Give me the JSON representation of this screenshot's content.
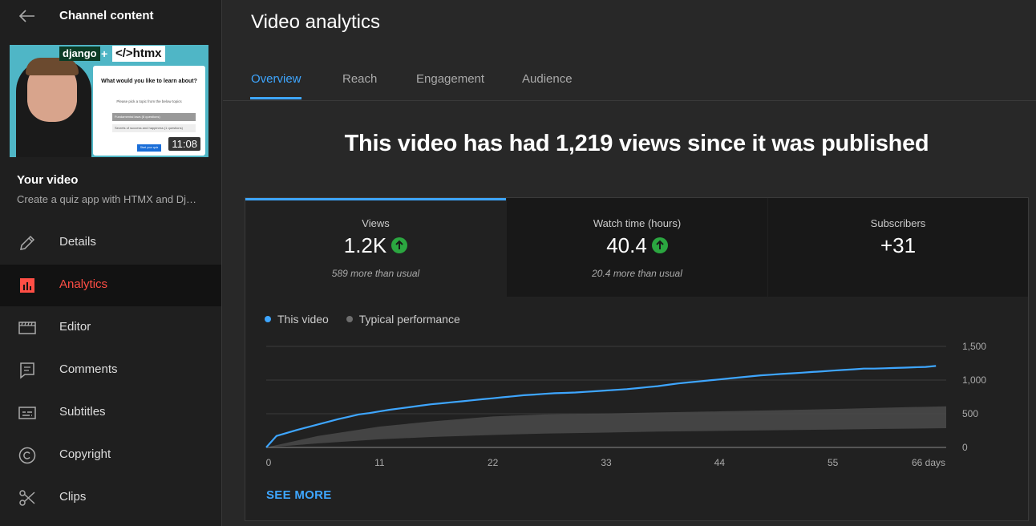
{
  "sidebar": {
    "title": "Channel content",
    "thumbnail": {
      "logo_left": "django",
      "logo_plus": "+",
      "logo_right": "</>htmx",
      "quiz_question": "What would you like to learn about?",
      "quiz_subtitle": "Please pick a topic from the below topics",
      "quiz_option_1": "Fundamental laws (8 questions)",
      "quiz_option_2": "Secrets of success and happiness (1 questions)",
      "quiz_button": "Start your quiz",
      "duration": "11:08"
    },
    "your_video_label": "Your video",
    "video_title": "Create a quiz app with HTMX and Dj…",
    "items": [
      {
        "label": "Details",
        "icon": "pencil-icon",
        "active": false
      },
      {
        "label": "Analytics",
        "icon": "analytics-icon",
        "active": true
      },
      {
        "label": "Editor",
        "icon": "editor-icon",
        "active": false
      },
      {
        "label": "Comments",
        "icon": "comments-icon",
        "active": false
      },
      {
        "label": "Subtitles",
        "icon": "subtitles-icon",
        "active": false
      },
      {
        "label": "Copyright",
        "icon": "copyright-icon",
        "active": false
      },
      {
        "label": "Clips",
        "icon": "scissors-icon",
        "active": false
      }
    ]
  },
  "header": {
    "title": "Video analytics"
  },
  "tabs": [
    {
      "label": "Overview",
      "active": true
    },
    {
      "label": "Reach",
      "active": false
    },
    {
      "label": "Engagement",
      "active": false
    },
    {
      "label": "Audience",
      "active": false
    }
  ],
  "headline": "This video has had 1,219 views since it was published",
  "metrics": [
    {
      "label": "Views",
      "value": "1.2K",
      "trend": "up",
      "sub": "589 more than usual",
      "active": true
    },
    {
      "label": "Watch time (hours)",
      "value": "40.4",
      "trend": "up",
      "sub": "20.4 more than usual",
      "active": false
    },
    {
      "label": "Subscribers",
      "value": "+31",
      "trend": "",
      "sub": "",
      "active": false
    }
  ],
  "legend": {
    "this_video": "This video",
    "typical": "Typical performance"
  },
  "colors": {
    "accent": "#3ea6ff",
    "active_nav": "#ff4e45",
    "line": "#3ea6ff",
    "trend_up": "#2ba640"
  },
  "see_more": "SEE MORE",
  "chart_data": {
    "type": "line",
    "x": [
      0,
      1,
      2,
      3,
      4,
      5,
      6,
      7,
      8,
      9,
      10,
      11,
      12,
      13,
      14,
      15,
      16,
      17,
      18,
      19,
      20,
      21,
      22,
      23,
      24,
      25,
      26,
      27,
      28,
      29,
      30,
      31,
      32,
      33,
      34,
      35,
      36,
      37,
      38,
      39,
      40,
      41,
      42,
      43,
      44,
      45,
      46,
      47,
      48,
      49,
      50,
      51,
      52,
      53,
      54,
      55,
      56,
      57,
      58,
      59,
      60,
      61,
      62,
      63,
      64,
      65
    ],
    "series": [
      {
        "name": "This video",
        "values": [
          0,
          170,
          215,
          260,
          300,
          340,
          380,
          420,
          455,
          490,
          510,
          535,
          560,
          580,
          600,
          620,
          640,
          655,
          670,
          685,
          700,
          715,
          730,
          745,
          760,
          775,
          785,
          795,
          805,
          810,
          815,
          825,
          835,
          845,
          855,
          865,
          880,
          895,
          910,
          930,
          950,
          965,
          980,
          995,
          1010,
          1025,
          1040,
          1055,
          1070,
          1080,
          1090,
          1100,
          1110,
          1120,
          1130,
          1140,
          1150,
          1160,
          1170,
          1170,
          1175,
          1180,
          1185,
          1190,
          1195,
          1210
        ]
      }
    ],
    "typical_band": {
      "name": "Typical performance",
      "x": [
        0,
        5,
        11,
        16,
        22,
        27,
        33,
        38,
        44,
        49,
        55,
        60,
        66
      ],
      "low": [
        0,
        60,
        120,
        155,
        185,
        205,
        220,
        235,
        245,
        255,
        265,
        275,
        285
      ],
      "high": [
        0,
        170,
        310,
        385,
        460,
        490,
        505,
        520,
        535,
        550,
        570,
        590,
        610
      ]
    },
    "xticks": [
      "0",
      "11",
      "22",
      "33",
      "44",
      "55",
      "66 days"
    ],
    "xtick_values": [
      0,
      11,
      22,
      33,
      44,
      55,
      66
    ],
    "yticks": [
      "0",
      "500",
      "1,000",
      "1,500"
    ],
    "ytick_values": [
      0,
      500,
      1000,
      1500
    ],
    "ylim": [
      0,
      1500
    ],
    "xlim": [
      0,
      66
    ],
    "grid": true,
    "legend_position": "top-left"
  }
}
